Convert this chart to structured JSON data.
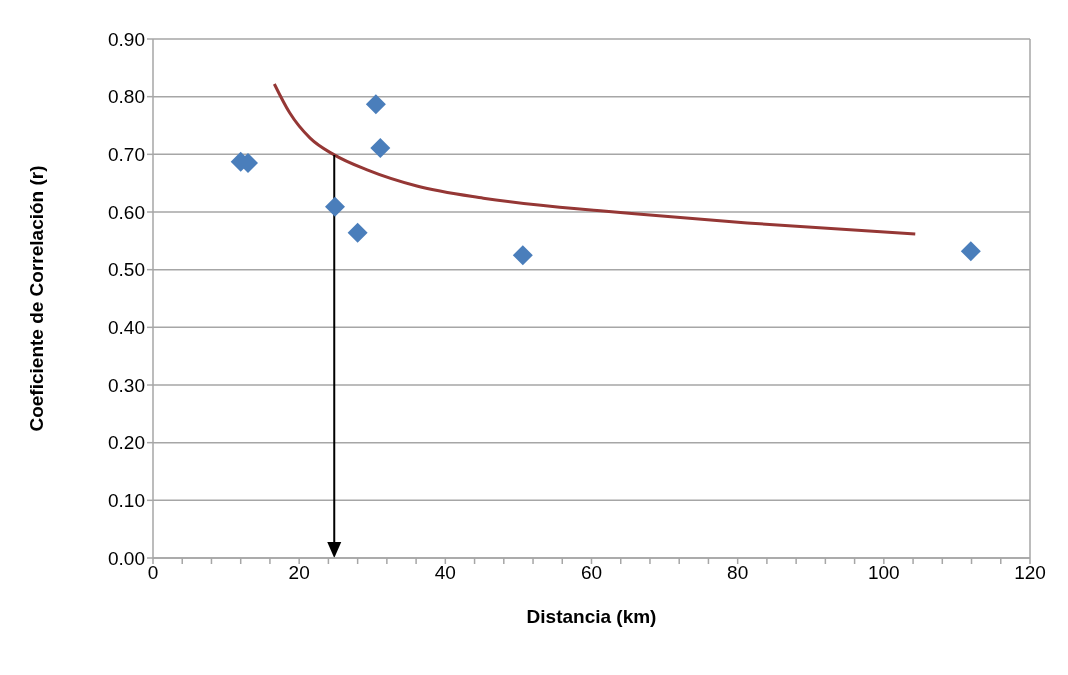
{
  "chart_data": {
    "type": "scatter",
    "xlabel": "Distancia (km)",
    "ylabel": "Coeficiente de Correlación (r)",
    "series": [
      {
        "color": "#4a7ebb",
        "marker": "diamond",
        "x": [
          12.0,
          13.0,
          24.9,
          28.0,
          30.5,
          31.1,
          50.6,
          111.9
        ],
        "values": [
          0.687,
          0.685,
          0.609,
          0.564,
          0.787,
          0.711,
          0.525,
          0.532
        ]
      },
      {
        "type": "line",
        "color": "#953735",
        "marker": "none",
        "x": [
          16.6,
          18.7,
          21.5,
          24.8,
          29.3,
          36.1,
          45.2,
          58.4,
          61.2,
          81.3,
          104.3
        ],
        "values": [
          0.822,
          0.772,
          0.728,
          0.699,
          0.673,
          0.645,
          0.624,
          0.605,
          0.602,
          0.581,
          0.562
        ]
      }
    ],
    "ref_lines": [
      {
        "axis": "x",
        "value": 24.8,
        "color": "#000000"
      }
    ],
    "xlim": [
      0,
      120
    ],
    "xticks": [
      0,
      {
        "value": 4,
        "label": null
      },
      {
        "value": 8,
        "label": null
      },
      {
        "value": 12,
        "label": null
      },
      {
        "value": 16,
        "label": null
      },
      20,
      {
        "value": 24,
        "label": null
      },
      {
        "value": 28,
        "label": null
      },
      {
        "value": 32,
        "label": null
      },
      {
        "value": 36,
        "label": null
      },
      40,
      {
        "value": 44,
        "label": null
      },
      {
        "value": 48,
        "label": null
      },
      {
        "value": 52,
        "label": null
      },
      {
        "value": 56,
        "label": null
      },
      60,
      {
        "value": 64,
        "label": null
      },
      {
        "value": 68,
        "label": null
      },
      {
        "value": 72,
        "label": null
      },
      {
        "value": 76,
        "label": null
      },
      80,
      {
        "value": 84,
        "label": null
      },
      {
        "value": 88,
        "label": null
      },
      {
        "value": 92,
        "label": null
      },
      {
        "value": 96,
        "label": null
      },
      100,
      {
        "value": 104,
        "label": null
      },
      {
        "value": 108,
        "label": null
      },
      {
        "value": 112,
        "label": null
      },
      {
        "value": 116,
        "label": null
      },
      120
    ],
    "ylim": [
      0,
      0.9
    ],
    "yticks": [
      {
        "value": 0,
        "label": "0.00"
      },
      {
        "value": 0.1,
        "label": "0.10"
      },
      {
        "value": 0.2,
        "label": "0.20"
      },
      {
        "value": 0.3,
        "label": "0.30"
      },
      {
        "value": 0.4,
        "label": "0.40"
      },
      {
        "value": 0.5,
        "label": "0.50"
      },
      {
        "value": 0.6,
        "label": "0.60"
      },
      {
        "value": 0.7,
        "label": "0.70"
      },
      {
        "value": 0.8,
        "label": "0.80"
      },
      {
        "value": 0.9,
        "label": "0.90"
      }
    ],
    "grid": "y"
  }
}
